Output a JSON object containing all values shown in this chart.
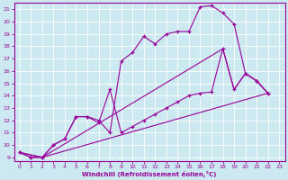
{
  "xlabel": "Windchill (Refroidissement éolien,°C)",
  "bg_color": "#cce8f0",
  "line_color": "#990099",
  "grid_color": "#ffffff",
  "xlim": [
    -0.5,
    23.5
  ],
  "ylim": [
    8.7,
    21.5
  ],
  "xticks": [
    0,
    1,
    2,
    3,
    4,
    5,
    6,
    7,
    8,
    9,
    10,
    11,
    12,
    13,
    14,
    15,
    16,
    17,
    18,
    19,
    20,
    21,
    22,
    23
  ],
  "yticks": [
    9,
    10,
    11,
    12,
    13,
    14,
    15,
    16,
    17,
    18,
    19,
    20,
    21
  ],
  "line1_x": [
    0,
    1,
    2,
    3,
    4,
    5,
    6,
    7,
    8,
    9,
    10,
    11,
    12,
    13,
    14,
    15,
    16,
    17,
    18,
    19,
    20,
    21,
    22
  ],
  "line1_y": [
    9.4,
    9.0,
    9.0,
    10.0,
    10.5,
    12.3,
    12.3,
    11.8,
    14.5,
    11.0,
    11.5,
    12.0,
    12.5,
    13.0,
    13.5,
    14.0,
    14.2,
    14.3,
    17.8,
    14.5,
    15.8,
    15.2,
    14.2
  ],
  "line2_x": [
    0,
    1,
    2,
    3,
    4,
    5,
    6,
    7,
    8,
    9,
    10,
    11,
    12,
    13,
    14,
    15,
    16,
    17,
    18,
    19,
    20,
    21,
    22
  ],
  "line2_y": [
    9.4,
    9.0,
    9.0,
    10.0,
    10.5,
    12.3,
    12.3,
    12.0,
    11.0,
    16.8,
    17.5,
    18.8,
    18.2,
    19.0,
    19.2,
    19.2,
    21.2,
    21.3,
    20.7,
    19.8,
    15.8,
    15.2,
    14.2
  ],
  "line3_x": [
    0,
    2,
    22
  ],
  "line3_y": [
    9.4,
    9.0,
    14.2
  ],
  "line4_x": [
    0,
    2,
    18,
    19,
    20,
    21,
    22
  ],
  "line4_y": [
    9.4,
    9.0,
    17.8,
    14.5,
    15.8,
    15.2,
    14.2
  ]
}
